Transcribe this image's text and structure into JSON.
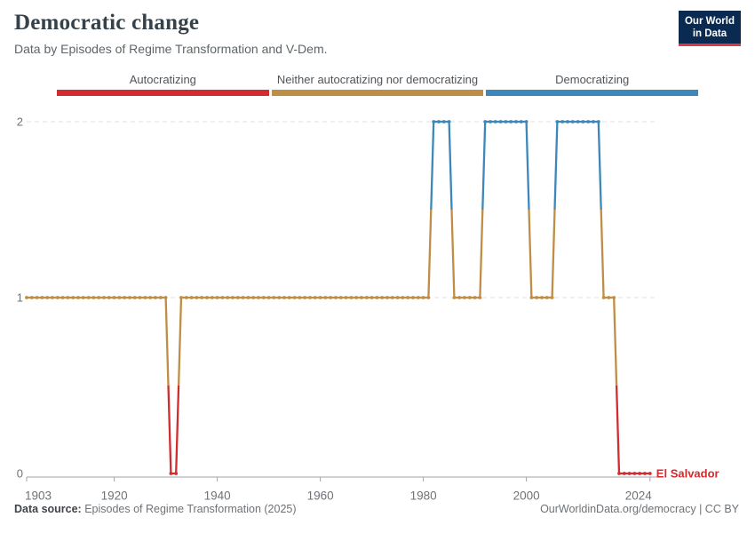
{
  "header": {
    "title": "Democratic change",
    "subtitle": "Data by Episodes of Regime Transformation and V-Dem.",
    "logo": {
      "line1": "Our World",
      "line2": "in Data",
      "bg": "#0b2a51",
      "accent": "#d93a3f"
    }
  },
  "legend": {
    "position": "top",
    "items": [
      {
        "label": "Autocratizing",
        "color": "#cf2d30",
        "value": 0
      },
      {
        "label": "Neither autocratizing nor democratizing",
        "color": "#bf8e45",
        "value": 1
      },
      {
        "label": "Democratizing",
        "color": "#3d87bb",
        "value": 2
      }
    ]
  },
  "chart_data": {
    "type": "line",
    "title": "Democratic change",
    "entity": "El Salvador",
    "series_label": "El Salvador",
    "series_label_color": "#cf2d30",
    "xlim": [
      1903,
      2024
    ],
    "ylim": [
      0,
      2
    ],
    "x_ticks": [
      1903,
      1920,
      1940,
      1960,
      1980,
      2000,
      2024
    ],
    "y_ticks": [
      0,
      1,
      2
    ],
    "grid": "dashed-horizontal",
    "value_colors": {
      "0": "#cf2d30",
      "1": "#bf8e45",
      "2": "#3d87bb"
    },
    "value_labels": {
      "0": "Autocratizing",
      "1": "Neither autocratizing nor democratizing",
      "2": "Democratizing"
    },
    "segments": [
      {
        "start": 1903,
        "end": 1930,
        "value": 1
      },
      {
        "start": 1931,
        "end": 1932,
        "value": 0
      },
      {
        "start": 1933,
        "end": 1981,
        "value": 1
      },
      {
        "start": 1982,
        "end": 1985,
        "value": 2
      },
      {
        "start": 1986,
        "end": 1991,
        "value": 1
      },
      {
        "start": 1992,
        "end": 2000,
        "value": 2
      },
      {
        "start": 2001,
        "end": 2005,
        "value": 1
      },
      {
        "start": 2006,
        "end": 2014,
        "value": 2
      },
      {
        "start": 2015,
        "end": 2017,
        "value": 1
      },
      {
        "start": 2018,
        "end": 2024,
        "value": 0
      }
    ]
  },
  "footer": {
    "source_label": "Data source:",
    "source_text": " Episodes of Regime Transformation (2025)",
    "credit": "OurWorldinData.org/democracy | CC BY"
  }
}
